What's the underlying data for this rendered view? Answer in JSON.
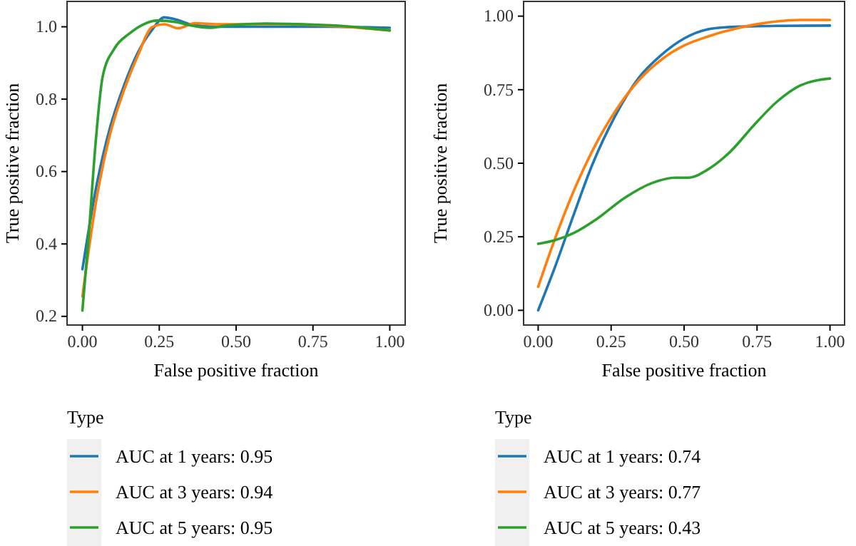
{
  "chart_data": [
    {
      "type": "line",
      "xlabel": "False positive fraction",
      "ylabel": "True positive fraction",
      "legend_title": "Type",
      "legend": "bottom",
      "xlim": [
        -0.05,
        1.05
      ],
      "ylim": [
        0.176,
        1.07
      ],
      "xticks": [
        {
          "value": 0,
          "label": "0.00"
        },
        {
          "value": 0.25,
          "label": "0.25"
        },
        {
          "value": 0.5,
          "label": "0.50"
        },
        {
          "value": 0.75,
          "label": "0.75"
        },
        {
          "value": 1,
          "label": "1.00"
        }
      ],
      "yticks": [
        0.2,
        0.4,
        0.6,
        0.8,
        {
          "value": 1,
          "label": "1.0"
        }
      ],
      "series": [
        {
          "name": "AUC at 1 years: 0.95",
          "color": "#1f77b4",
          "x": [
            0,
            0.043,
            0.089,
            0.135,
            0.18,
            0.228,
            0.266,
            0.305,
            0.35,
            0.43,
            0.6,
            0.8,
            1.0
          ],
          "values": [
            0.33,
            0.549,
            0.719,
            0.837,
            0.928,
            0.993,
            1.026,
            1.02,
            1.007,
            1.0,
            1.0,
            1.0,
            0.997
          ]
        },
        {
          "name": "AUC at 3 years: 0.94",
          "color": "#ff7f0e",
          "x": [
            0,
            0.043,
            0.089,
            0.135,
            0.18,
            0.228,
            0.266,
            0.312,
            0.366,
            0.44,
            0.66,
            0.85,
            1.0
          ],
          "values": [
            0.255,
            0.51,
            0.7,
            0.824,
            0.92,
            1.0,
            1.007,
            0.996,
            1.01,
            1.007,
            1.007,
            1.0,
            0.99
          ]
        },
        {
          "name": "AUC at 5 years: 0.95",
          "color": "#2ca02c",
          "x": [
            0,
            0.02,
            0.043,
            0.066,
            0.105,
            0.151,
            0.197,
            0.243,
            0.305,
            0.35,
            0.412,
            0.474,
            0.597,
            0.81,
            1.0
          ],
          "values": [
            0.216,
            0.418,
            0.68,
            0.863,
            0.941,
            0.98,
            1.006,
            1.017,
            1.013,
            1.004,
            0.997,
            1.004,
            1.009,
            1.004,
            0.99
          ]
        }
      ]
    },
    {
      "type": "line",
      "xlabel": "False positive fraction",
      "ylabel": "True positive fraction",
      "legend_title": "Type",
      "legend": "bottom",
      "xlim": [
        -0.05,
        1.05
      ],
      "ylim": [
        -0.05,
        1.05
      ],
      "xticks": [
        {
          "value": 0,
          "label": "0.00"
        },
        {
          "value": 0.25,
          "label": "0.25"
        },
        {
          "value": 0.5,
          "label": "0.50"
        },
        {
          "value": 0.75,
          "label": "0.75"
        },
        {
          "value": 1,
          "label": "1.00"
        }
      ],
      "yticks": [
        {
          "value": 0,
          "label": "0.00"
        },
        {
          "value": 0.25,
          "label": "0.25"
        },
        {
          "value": 0.5,
          "label": "0.50"
        },
        {
          "value": 0.75,
          "label": "0.75"
        },
        {
          "value": 1,
          "label": "1.00"
        }
      ],
      "series": [
        {
          "name": "AUC at 1 years: 0.74",
          "color": "#1f77b4",
          "x": [
            0,
            0.059,
            0.122,
            0.185,
            0.264,
            0.343,
            0.422,
            0.5,
            0.58,
            0.66,
            0.82,
            1.0
          ],
          "values": [
            0,
            0.151,
            0.326,
            0.494,
            0.661,
            0.788,
            0.868,
            0.924,
            0.955,
            0.963,
            0.967,
            0.968
          ]
        },
        {
          "name": "AUC at 3 years: 0.77",
          "color": "#ff7f0e",
          "x": [
            0,
            0.059,
            0.122,
            0.185,
            0.264,
            0.343,
            0.422,
            0.5,
            0.58,
            0.74,
            0.897,
            1.0
          ],
          "values": [
            0.08,
            0.247,
            0.406,
            0.541,
            0.677,
            0.78,
            0.852,
            0.9,
            0.93,
            0.971,
            0.987,
            0.987
          ]
        },
        {
          "name": "AUC at 5 years: 0.43",
          "color": "#2ca02c",
          "x": [
            0,
            0.059,
            0.122,
            0.2,
            0.296,
            0.391,
            0.47,
            0.517,
            0.58,
            0.66,
            0.739,
            0.818,
            0.897,
            1.0
          ],
          "values": [
            0.226,
            0.239,
            0.263,
            0.31,
            0.382,
            0.433,
            0.451,
            0.451,
            0.478,
            0.541,
            0.629,
            0.709,
            0.764,
            0.788
          ]
        }
      ]
    }
  ]
}
